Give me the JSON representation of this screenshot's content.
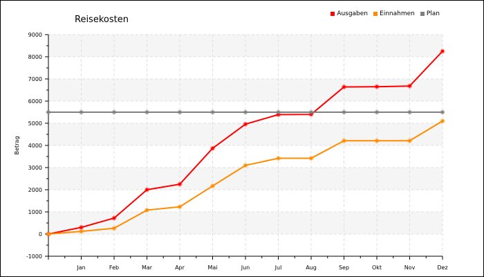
{
  "chart_data": {
    "type": "line",
    "title": "Reisekosten",
    "ylabel": "Betrag",
    "xlabel": "",
    "categories": [
      "",
      "Jan",
      "Feb",
      "Mar",
      "Apr",
      "Mai",
      "Jun",
      "Jul",
      "Aug",
      "Sep",
      "Okt",
      "Nov",
      "Dez"
    ],
    "ylim": [
      -1000,
      9000
    ],
    "yticks": [
      -1000,
      0,
      1000,
      2000,
      3000,
      4000,
      5000,
      6000,
      7000,
      8000,
      9000
    ],
    "grid": true,
    "legend_position": "top-right",
    "series": [
      {
        "name": "Ausgaben",
        "color": "#ff0000",
        "values": [
          0,
          300,
          720,
          2000,
          2250,
          3870,
          4960,
          5390,
          5400,
          6640,
          6650,
          6680,
          8250
        ]
      },
      {
        "name": "Einnahmen",
        "color": "#ff8c00",
        "values": [
          0,
          120,
          260,
          1080,
          1230,
          2170,
          3100,
          3420,
          3420,
          4210,
          4210,
          4210,
          5100
        ]
      },
      {
        "name": "Plan",
        "color": "#808080",
        "values": [
          5500,
          5500,
          5500,
          5500,
          5500,
          5500,
          5500,
          5500,
          5500,
          5500,
          5500,
          5500,
          5500
        ]
      }
    ]
  }
}
